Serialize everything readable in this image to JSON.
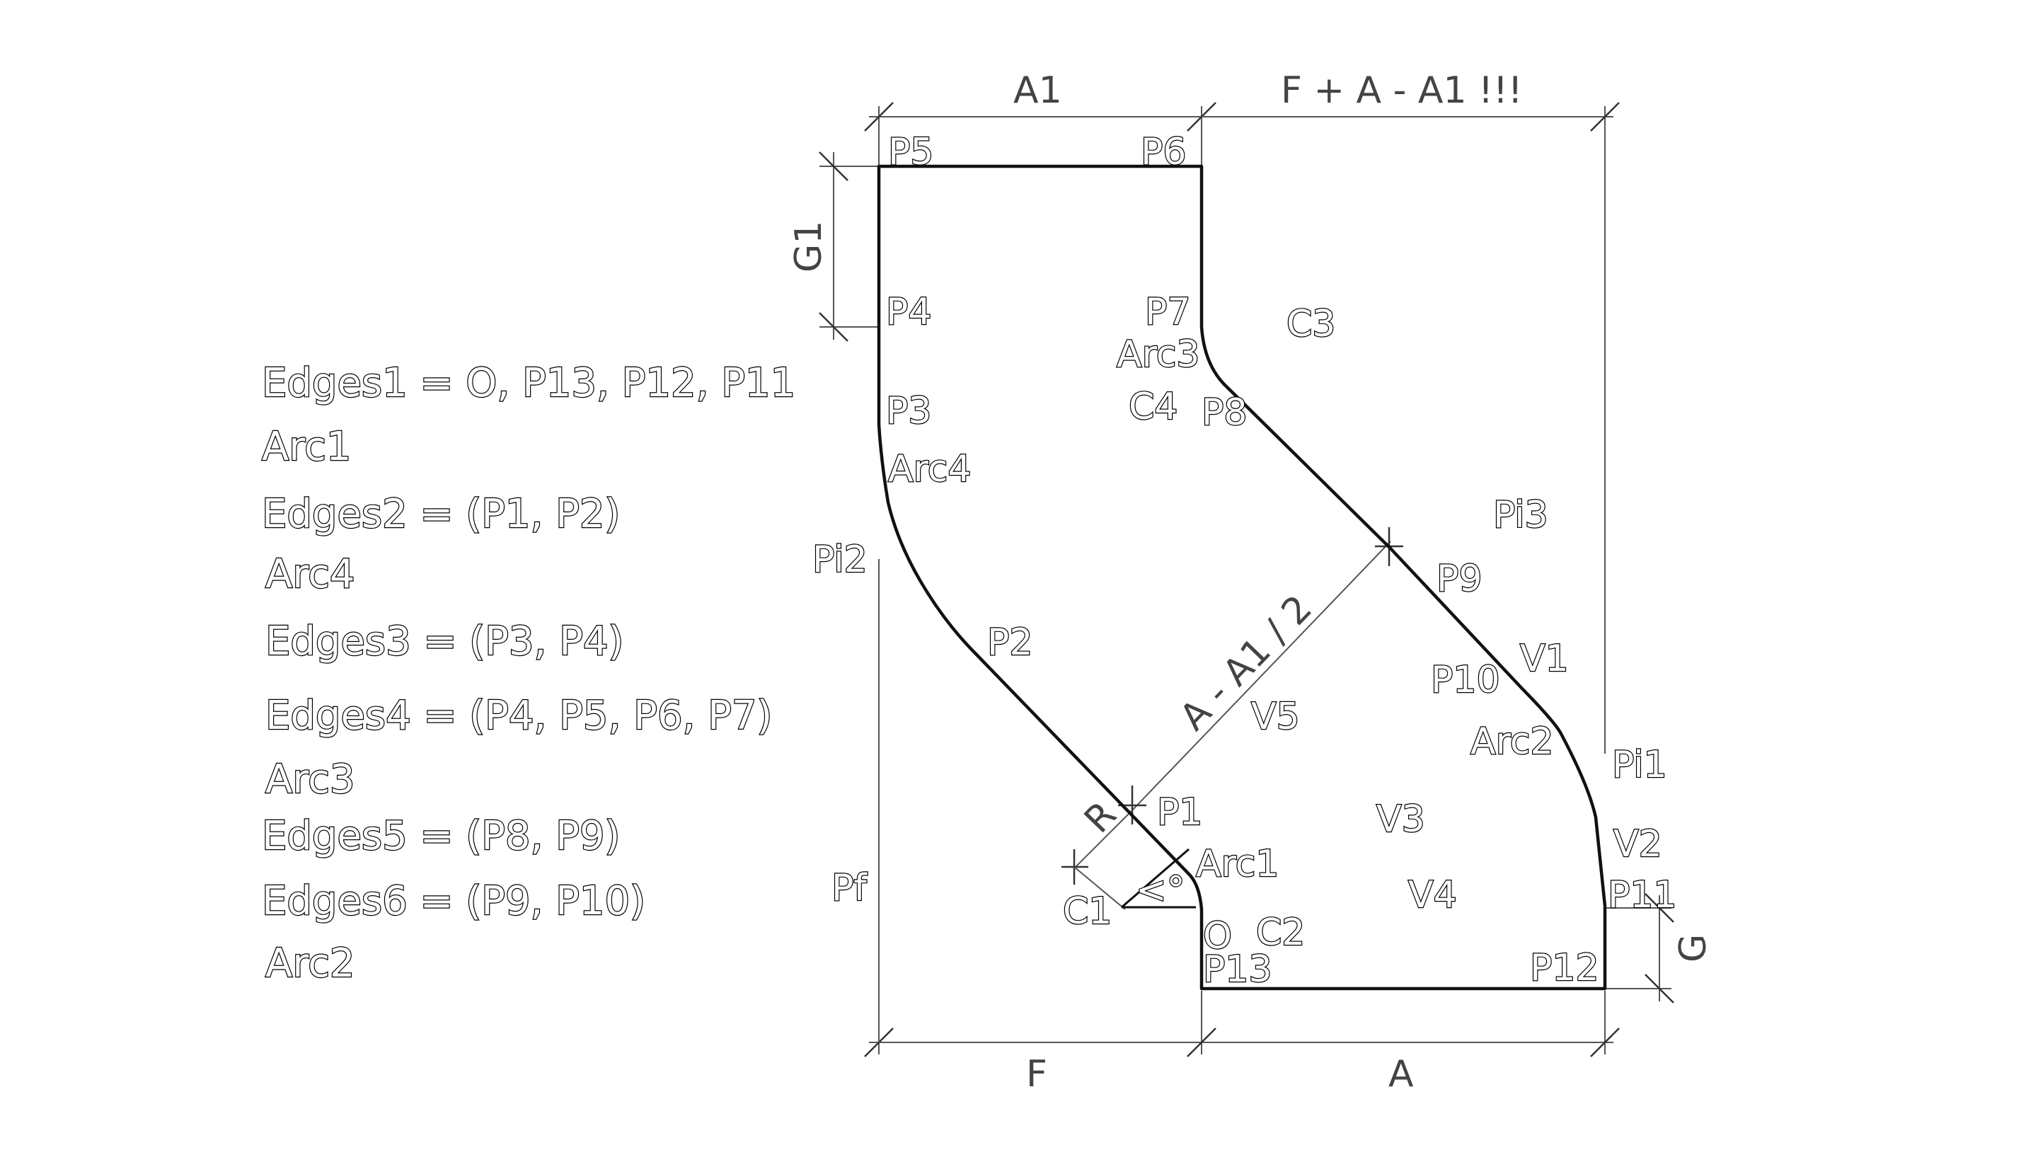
{
  "edges_list": {
    "line1": "Edges1 = O, P13, P12, P11",
    "line2": "Arc1",
    "line3": "Edges2 = (P1, P2)",
    "line4": "Arc4",
    "line5": "Edges3 = (P3, P4)",
    "line6": "Edges4 = (P4, P5, P6, P7)",
    "line7": "Arc3",
    "line8": "Edges5 = (P8, P9)",
    "line9": "Edges6 = (P9, P10)",
    "line10": "Arc2"
  },
  "dimensions": {
    "a1": "A1",
    "f_plus_a_minus_a1": "F + A - A1 !!!",
    "g1": "G1",
    "a_minus_a1_half": "A - A1 / 2",
    "r": "R",
    "g": "G",
    "f": "F",
    "a": "A"
  },
  "points": {
    "p5": "P5",
    "p6": "P6",
    "p4": "P4",
    "p7": "P7",
    "c3": "C3",
    "arc3": "Arc3",
    "p3": "P3",
    "c4": "C4",
    "p8": "P8",
    "arc4": "Arc4",
    "pi3": "Pi3",
    "pi2": "Pi2",
    "p9": "P9",
    "p2": "P2",
    "v1": "V1",
    "p10": "P10",
    "v5": "V5",
    "arc2": "Arc2",
    "pi1": "Pi1",
    "p1": "P1",
    "v3": "V3",
    "v2": "V2",
    "arc1": "Arc1",
    "pf": "Pf",
    "angle": "<°",
    "p11": "P11",
    "v4": "V4",
    "c1": "C1",
    "o": "O",
    "c2": "C2",
    "p13": "P13",
    "p12": "P12"
  }
}
